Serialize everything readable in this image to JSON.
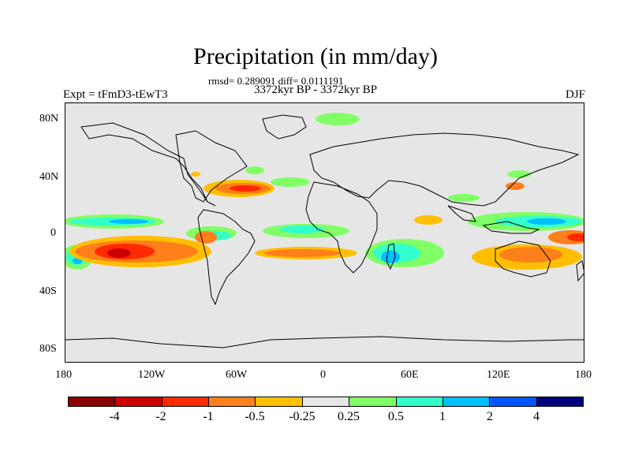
{
  "title": "Precipitation (in mm/day)",
  "stats_line": "rmsd= 0.289091 diff= 0.0111191",
  "period_line": "3372kyr BP - 3372kyr BP",
  "experiment_label": "Expt = tFmD3-tEwT3",
  "season_label": "DJF",
  "map": {
    "lat_ticks": [
      "80N",
      "40N",
      "0",
      "40S",
      "80S"
    ],
    "lon_ticks": [
      "180",
      "120W",
      "60W",
      "0",
      "60E",
      "120E",
      "180"
    ],
    "land_color": "#e6e6e6"
  },
  "legend": {
    "colors": [
      "#8b0000",
      "#cc0000",
      "#ff2a00",
      "#ff7f1a",
      "#ffbf00",
      "#e6e6e6",
      "#80ff66",
      "#33ffcc",
      "#00bfff",
      "#0055ff",
      "#000080"
    ],
    "labels": [
      "-4",
      "-2",
      "-1",
      "-0.5",
      "-0.25",
      "0.25",
      "0.5",
      "1",
      "2",
      "4"
    ]
  }
}
